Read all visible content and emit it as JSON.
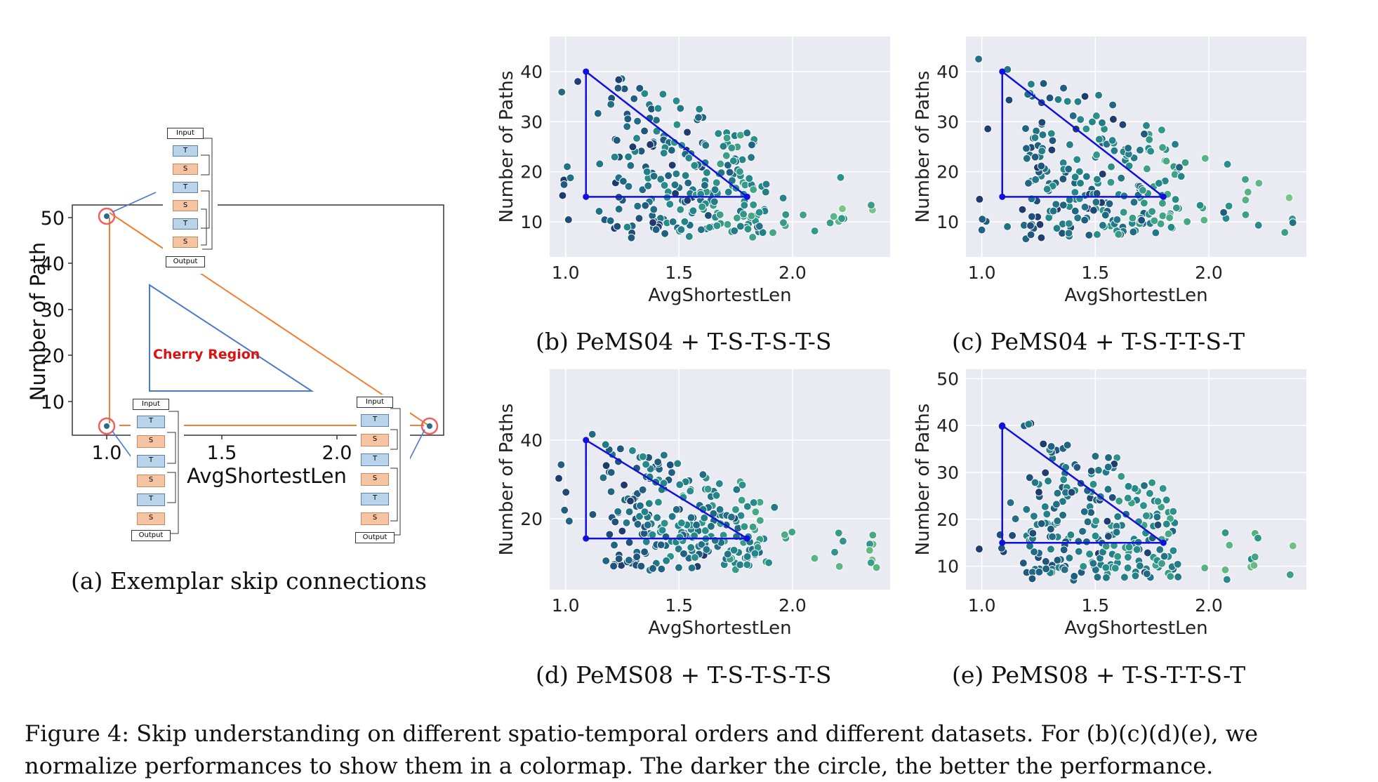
{
  "panel_a": {
    "xlabel": "AvgShortestLen",
    "ylabel": "Number of Path",
    "xticks": [
      "1.0",
      "1.5",
      "2.0"
    ],
    "yticks": [
      "10",
      "20",
      "30",
      "40",
      "50"
    ],
    "region_label": "Cherry Region",
    "input_label": "Input",
    "output_label": "Output",
    "block_t": "T",
    "block_s": "S",
    "caption": "(a) Exemplar skip connections"
  },
  "colors": {
    "triangle": "#1010e0",
    "plot_bg": "#eaeaf2",
    "grid": "#ffffff",
    "colormap_dark": "#1f3a6e",
    "colormap_light": "#9fd38a",
    "cherry_region": "#e01010",
    "highlight_line": "#f08030",
    "connector_line": "#4a7ac8"
  },
  "chart_data": [
    {
      "id": "b",
      "type": "scatter",
      "caption": "(b) PeMS04 + T-S-T-S-T-S",
      "xlabel": "AvgShortestLen",
      "ylabel": "Number of Paths",
      "xlim": [
        0.93,
        2.43
      ],
      "ylim": [
        3,
        47
      ],
      "xticks": [
        "1.0",
        "1.5",
        "2.0"
      ],
      "yticks": [
        "10",
        "20",
        "30",
        "40"
      ],
      "triangle": [
        [
          1.09,
          40
        ],
        [
          1.09,
          15
        ],
        [
          1.8,
          15
        ]
      ],
      "point_seed": 11
    },
    {
      "id": "c",
      "type": "scatter",
      "caption": "(c) PeMS04 + T-S-T-T-S-T",
      "xlabel": "AvgShortestLen",
      "ylabel": "Number of Paths",
      "xlim": [
        0.93,
        2.43
      ],
      "ylim": [
        3,
        47
      ],
      "xticks": [
        "1.0",
        "1.5",
        "2.0"
      ],
      "yticks": [
        "10",
        "20",
        "30",
        "40"
      ],
      "triangle": [
        [
          1.09,
          40
        ],
        [
          1.09,
          15
        ],
        [
          1.8,
          15
        ]
      ],
      "point_seed": 23
    },
    {
      "id": "d",
      "type": "scatter",
      "caption": "(d) PeMS08 + T-S-T-S-T-S",
      "xlabel": "AvgShortestLen",
      "ylabel": "Number of Paths",
      "xlim": [
        0.93,
        2.43
      ],
      "ylim": [
        2,
        58
      ],
      "xticks": [
        "1.0",
        "1.5",
        "2.0"
      ],
      "yticks": [
        "20",
        "40"
      ],
      "triangle": [
        [
          1.09,
          40
        ],
        [
          1.09,
          15
        ],
        [
          1.8,
          15
        ]
      ],
      "point_seed": 37
    },
    {
      "id": "e",
      "type": "scatter",
      "caption": "(e) PeMS08 + T-S-T-T-S-T",
      "xlabel": "AvgShortestLen",
      "ylabel": "Number of Paths",
      "xlim": [
        0.93,
        2.43
      ],
      "ylim": [
        5,
        52
      ],
      "xticks": [
        "1.0",
        "1.5",
        "2.0"
      ],
      "yticks": [
        "10",
        "20",
        "30",
        "40",
        "50"
      ],
      "triangle": [
        [
          1.09,
          40
        ],
        [
          1.09,
          15
        ],
        [
          1.8,
          15
        ]
      ],
      "point_seed": 53
    }
  ],
  "figure_caption": {
    "line1": "Figure 4: Skip understanding on different spatio-temporal orders and different datasets. For (b)(c)(d)(e), we",
    "line2": "normalize performances to show them in a colormap. The darker the circle, the better the performance."
  }
}
